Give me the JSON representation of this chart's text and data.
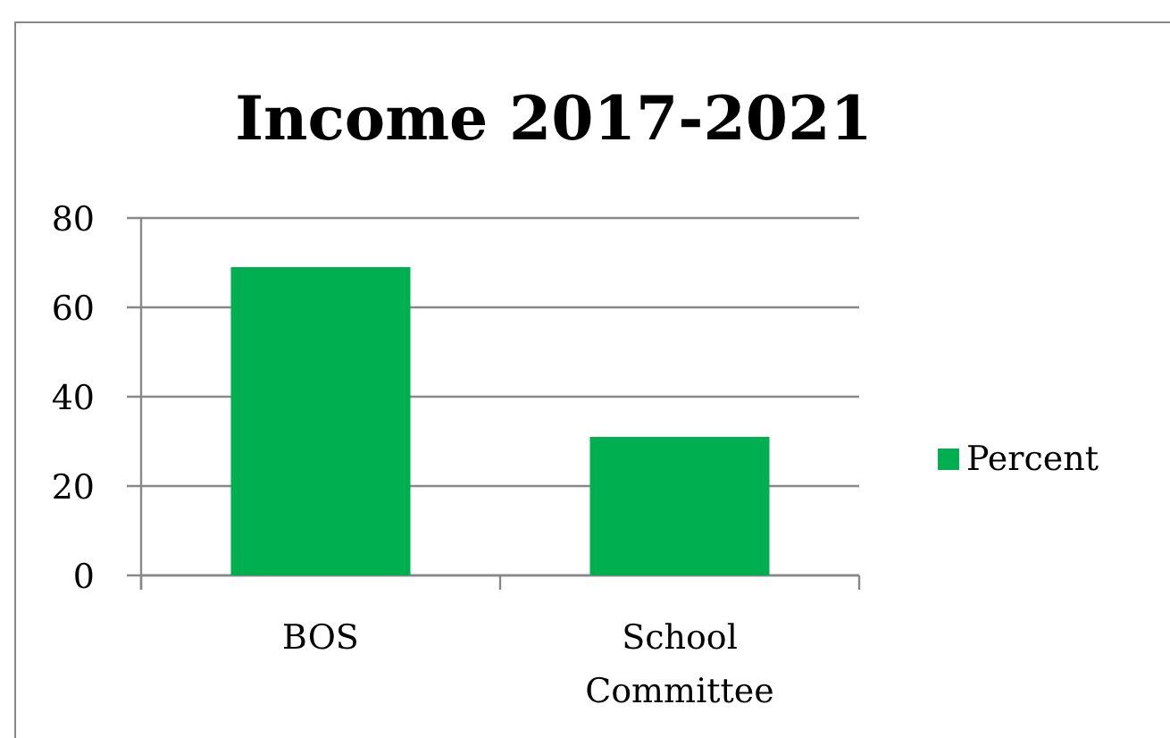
{
  "chart_data": {
    "type": "bar",
    "title": "Income 2017-2021",
    "categories": [
      "BOS",
      "School Committee"
    ],
    "series": [
      {
        "name": "Percent",
        "color": "#00b050",
        "values": [
          69,
          31
        ]
      }
    ],
    "ylim": [
      0,
      80
    ],
    "yticks": [
      0,
      20,
      40,
      60,
      80
    ],
    "grid": "y",
    "legend": "right"
  }
}
